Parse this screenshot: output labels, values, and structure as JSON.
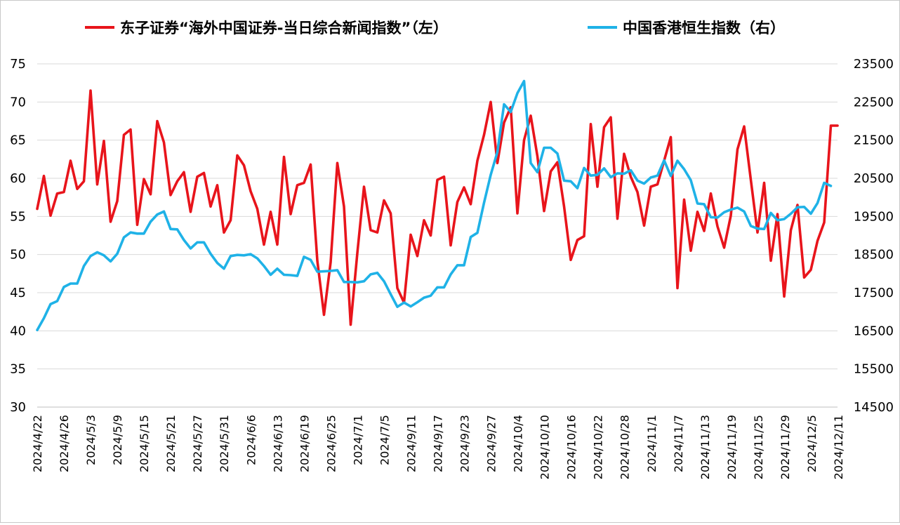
{
  "chart_data": {
    "type": "line",
    "legend_placement": "top",
    "grid": true,
    "series": [
      {
        "name": "东子证券“海外中国证券-当日综合新闻指数”（左）",
        "axis": "left",
        "color": "#e8141b",
        "values": [
          56.0,
          60.3,
          55.1,
          58.0,
          58.2,
          62.3,
          58.6,
          59.6,
          71.5,
          59.2,
          64.9,
          54.3,
          57.0,
          65.7,
          66.4,
          53.9,
          59.9,
          57.9,
          67.5,
          64.7,
          57.8,
          59.6,
          60.8,
          55.6,
          60.2,
          60.7,
          56.3,
          59.1,
          52.9,
          54.5,
          63.0,
          61.7,
          58.3,
          56.0,
          51.3,
          55.6,
          51.3,
          62.8,
          55.3,
          59.1,
          59.4,
          61.8,
          49.2,
          42.1,
          49.0,
          62.0,
          56.3,
          40.8,
          50.2,
          58.9,
          53.2,
          52.9,
          57.1,
          55.4,
          45.6,
          43.7,
          52.6,
          49.8,
          54.5,
          52.5,
          59.8,
          60.2,
          51.2,
          56.9,
          58.8,
          56.6,
          62.3,
          65.7,
          70.0,
          62.0,
          67.3,
          69.3,
          55.4,
          65.0,
          68.2,
          62.9,
          55.7,
          60.9,
          62.1,
          56.3,
          49.3,
          51.9,
          52.4,
          67.1,
          58.9,
          66.7,
          68.0,
          54.7,
          63.2,
          60.2,
          58.2,
          53.8,
          58.9,
          59.2,
          62.3,
          65.4,
          45.6,
          57.2,
          50.5,
          55.6,
          53.1,
          58.0,
          53.7,
          50.9,
          55.1,
          63.8,
          66.8,
          59.8,
          52.9,
          59.4,
          49.2,
          55.3,
          44.5,
          53.2,
          56.5,
          47.0,
          48.0,
          51.8,
          54.2,
          66.9,
          66.9
        ]
      },
      {
        "name": "中国香港恒生指数（右）",
        "axis": "right",
        "color": "#1fb2e7",
        "values": [
          16520,
          16830,
          17200,
          17280,
          17650,
          17740,
          17740,
          18200,
          18460,
          18560,
          18480,
          18320,
          18520,
          18950,
          19080,
          19050,
          19050,
          19360,
          19550,
          19630,
          19170,
          19160,
          18880,
          18660,
          18820,
          18820,
          18520,
          18280,
          18130,
          18460,
          18490,
          18480,
          18510,
          18400,
          18200,
          17970,
          18130,
          17970,
          17960,
          17940,
          18440,
          18360,
          18050,
          18060,
          18070,
          18090,
          17780,
          17780,
          17770,
          17800,
          17980,
          18020,
          17800,
          17460,
          17130,
          17240,
          17140,
          17250,
          17370,
          17420,
          17640,
          17640,
          17980,
          18220,
          18220,
          18960,
          19070,
          19860,
          20590,
          21190,
          22440,
          22240,
          22730,
          23050,
          20900,
          20660,
          21300,
          21300,
          21150,
          20440,
          20420,
          20240,
          20770,
          20570,
          20590,
          20760,
          20530,
          20630,
          20620,
          20710,
          20440,
          20360,
          20520,
          20570,
          20970,
          20560,
          20960,
          20740,
          20450,
          19840,
          19820,
          19480,
          19470,
          19610,
          19680,
          19730,
          19630,
          19250,
          19180,
          19170,
          19590,
          19400,
          19430,
          19570,
          19740,
          19750,
          19570,
          19850,
          20380,
          20300
        ]
      }
    ],
    "x_tick_labels": [
      "2024/4/22",
      "2024/4/26",
      "2024/5/3",
      "2024/5/9",
      "2024/5/15",
      "2024/5/21",
      "2024/5/27",
      "2024/5/31",
      "2024/6/6",
      "2024/6/13",
      "2024/6/19",
      "2024/6/25",
      "2024/7/1",
      "2024/7/5",
      "2024/9/11",
      "2024/9/17",
      "2024/9/23",
      "2024/9/27",
      "2024/10/4",
      "2024/10/10",
      "2024/10/16",
      "2024/10/22",
      "2024/10/28",
      "2024/11/1",
      "2024/11/7",
      "2024/11/13",
      "2024/11/19",
      "2024/11/25",
      "2024/11/29",
      "2024/12/5",
      "2024/12/11"
    ],
    "y_left": {
      "min": 30,
      "max": 75,
      "ticks": [
        "30",
        "35",
        "40",
        "45",
        "50",
        "55",
        "60",
        "65",
        "70",
        "75"
      ]
    },
    "y_right": {
      "min": 14500,
      "max": 23500,
      "ticks": [
        "14500",
        "15500",
        "16500",
        "17500",
        "18500",
        "19500",
        "20500",
        "21500",
        "22500",
        "23500"
      ]
    }
  }
}
